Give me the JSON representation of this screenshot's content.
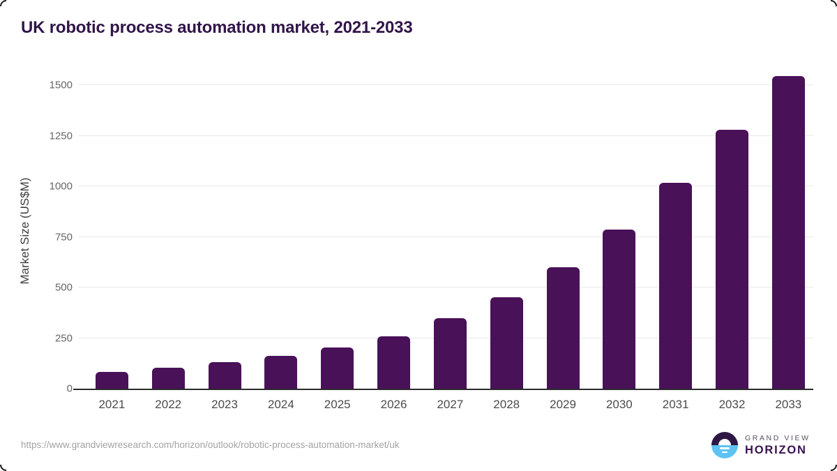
{
  "title": "UK robotic process automation market, 2021-2033",
  "source_url": "https://www.grandviewresearch.com/horizon/outlook/robotic-process-automation-market/uk",
  "logo": {
    "icon": "grand-view-horizon-sun-icon",
    "brand_top": "GRAND VIEW",
    "brand_bottom": "HORIZON"
  },
  "colors": {
    "bar": "#491158",
    "title_text": "#311549",
    "gridline": "#e8e8e8",
    "axis_line": "#2b2b2b",
    "x_tick_text": "#4b4b4b",
    "y_tick_text": "#666666",
    "source_text": "#a3a3a3",
    "logo_purple": "#2e1745",
    "logo_blue": "#5ec3f2"
  },
  "chart_data": {
    "type": "bar",
    "title": "UK robotic process automation market, 2021-2033",
    "categories": [
      "2021",
      "2022",
      "2023",
      "2024",
      "2025",
      "2026",
      "2027",
      "2028",
      "2029",
      "2030",
      "2031",
      "2032",
      "2033"
    ],
    "values": [
      83,
      104,
      130,
      162,
      202,
      257,
      347,
      452,
      600,
      786,
      1018,
      1281,
      1545
    ],
    "xlabel": "",
    "ylabel": "Market Size (US$M)",
    "ylim": [
      0,
      1500
    ],
    "yticks": [
      0,
      250,
      500,
      750,
      1000,
      1250,
      1500
    ],
    "grid": true,
    "legend": false,
    "bar_color": "#491158"
  }
}
